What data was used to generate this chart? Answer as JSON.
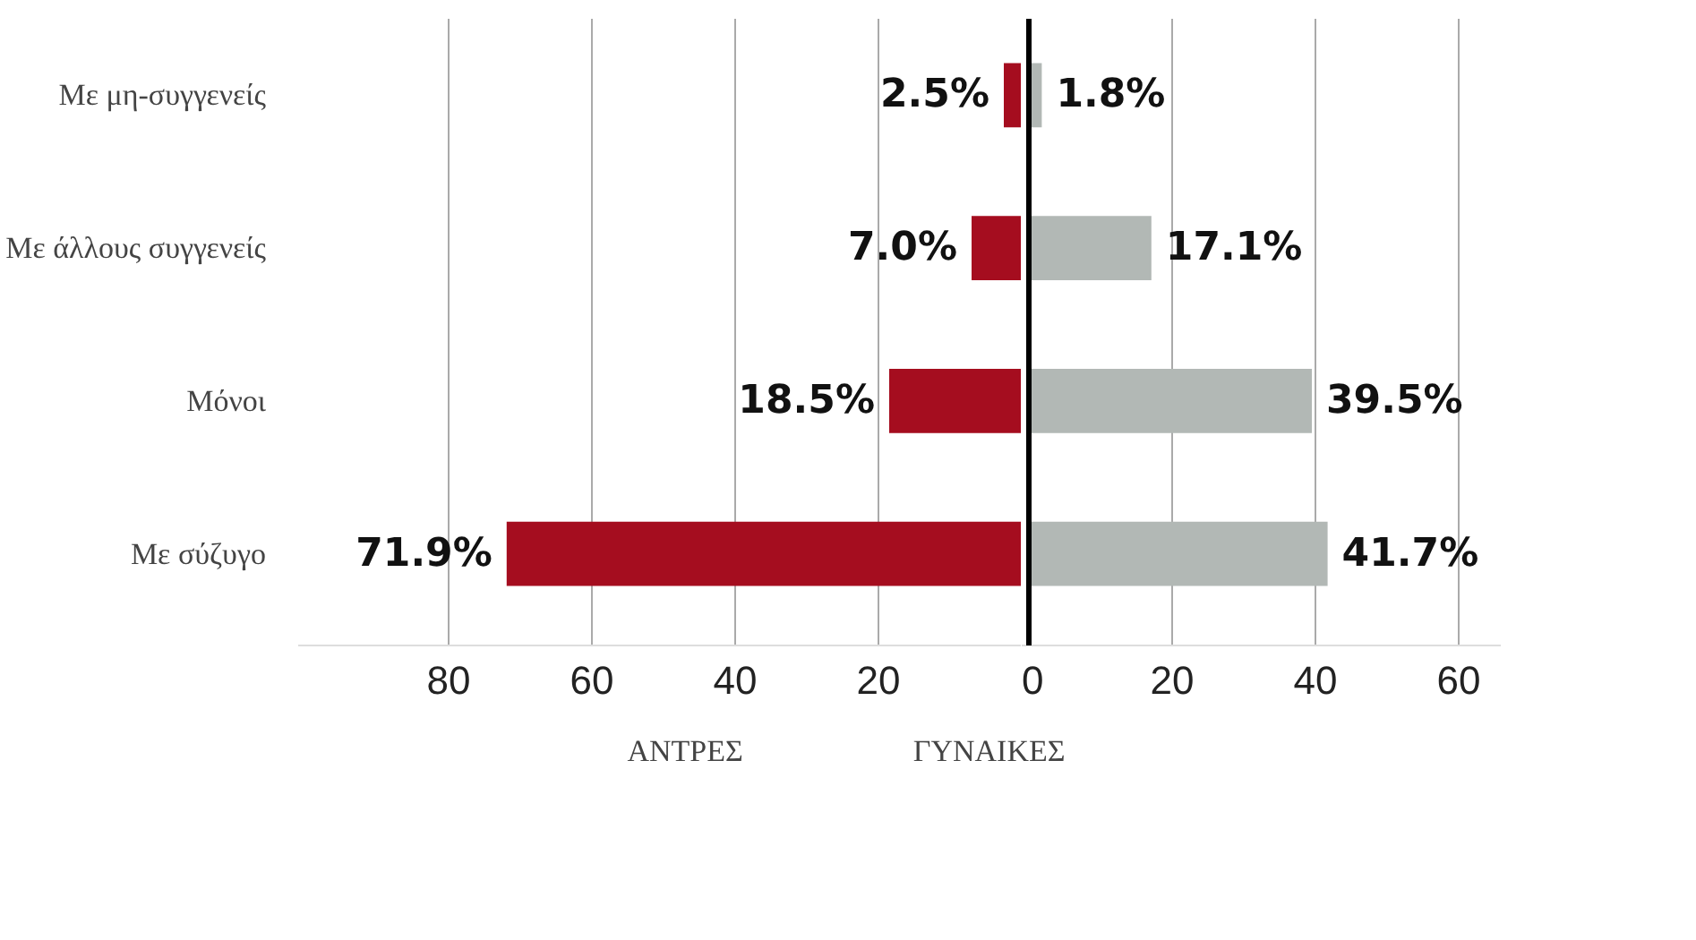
{
  "chart_data": [
    {
      "type": "bar",
      "orientation": "horizontal",
      "categories": [
        "Με μη-συγγενείς",
        "Με άλλους συγγενείς",
        "Μόνοι",
        "Με σύζυγο"
      ],
      "series": [
        {
          "name": "ΑΝΤΡΕΣ",
          "color": "#a50d1f",
          "values": [
            2.5,
            7.0,
            18.5,
            71.9
          ],
          "value_labels": [
            "2.5%",
            "7.0%",
            "18.5%",
            "71.9%"
          ]
        }
      ],
      "xlim": [
        101,
        0
      ],
      "xticks": [
        80,
        60,
        40,
        20
      ],
      "grid": "x",
      "legend": "bottom"
    },
    {
      "type": "bar",
      "orientation": "horizontal",
      "series": [
        {
          "name": "ΓΥΝΑΙΚΕΣ",
          "color": "#b2b8b5",
          "values": [
            1.8,
            17.1,
            39.5,
            41.7
          ],
          "value_labels": [
            "1.8%",
            "17.1%",
            "39.5%",
            "41.7%"
          ]
        }
      ],
      "xlim": [
        -1,
        66
      ],
      "xticks": [
        0,
        20,
        40,
        60
      ],
      "ref_lines": [
        {
          "axis": "x",
          "value": 0,
          "color": "#000000"
        }
      ],
      "grid": "x",
      "legend": "bottom",
      "tick_labels": "x"
    }
  ]
}
